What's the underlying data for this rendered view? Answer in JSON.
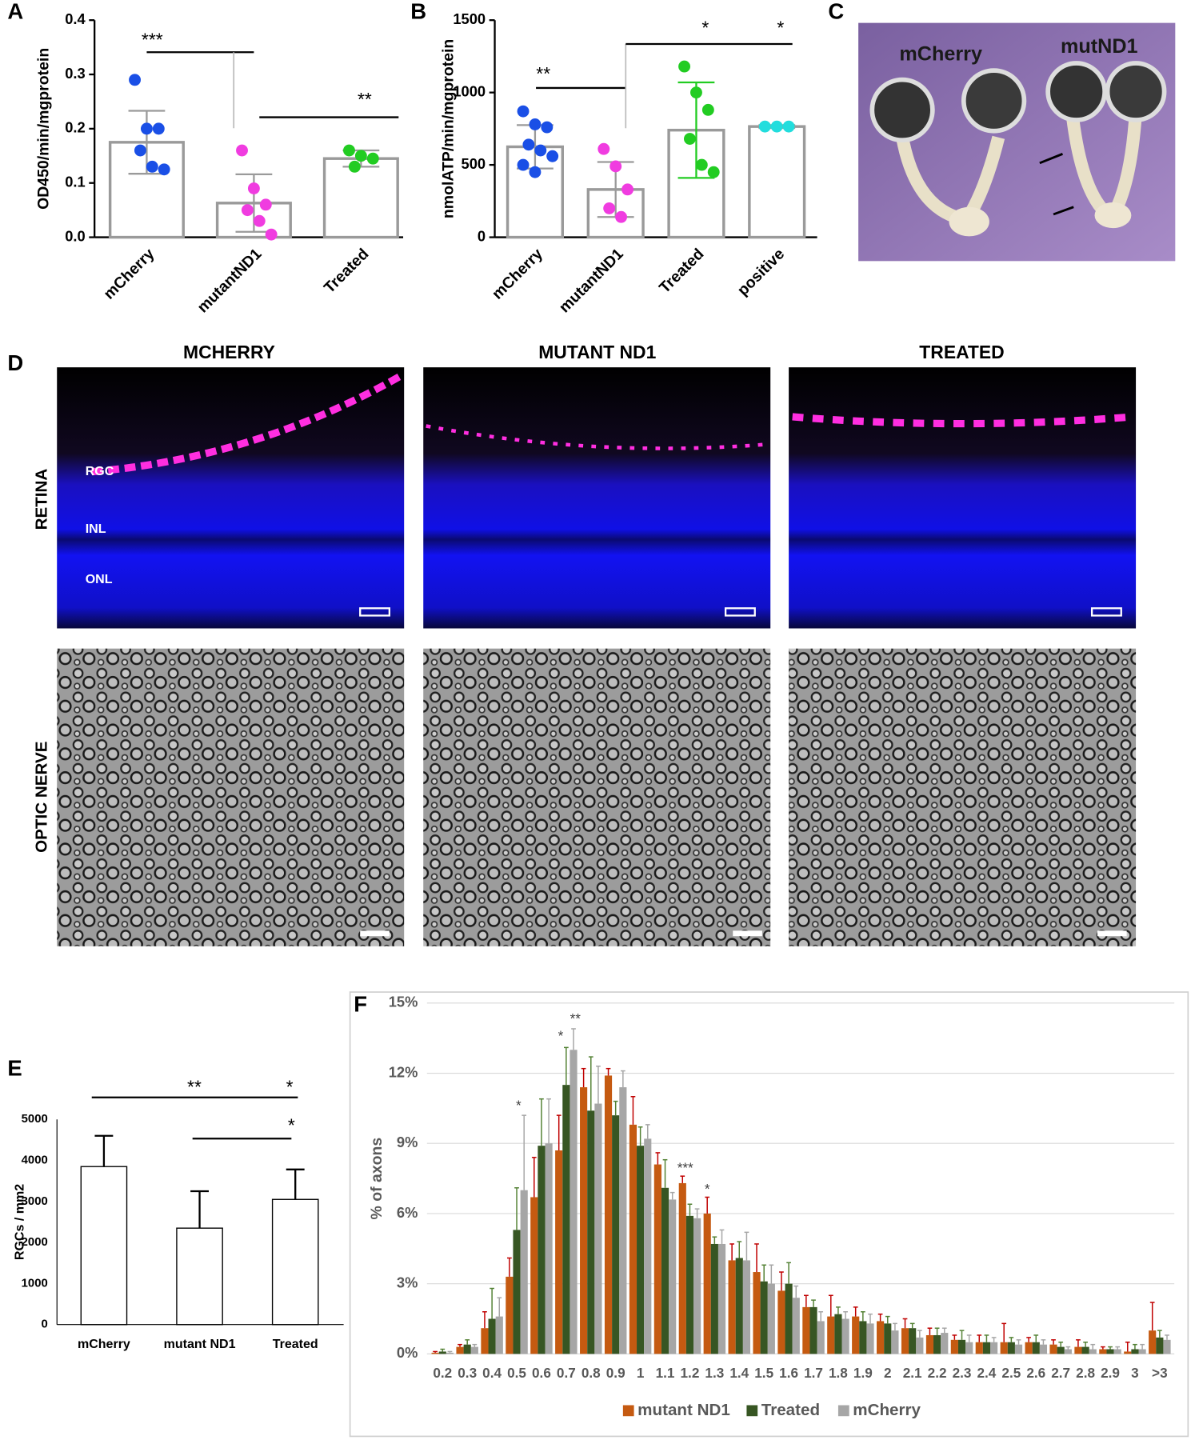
{
  "figure": {
    "panel_labels": [
      "A",
      "B",
      "C",
      "D",
      "E",
      "F"
    ],
    "eye_labels": [
      "mCherry",
      "mutND1"
    ],
    "columns": [
      "MCHERRY",
      "MUTANT ND1",
      "TREATED"
    ],
    "rows": [
      "RETINA",
      "OPTIC NERVE"
    ],
    "layers": [
      "RGC",
      "INL",
      "ONL"
    ]
  },
  "chart_data": [
    {
      "type": "bar",
      "ylabel": "OD450/min/mgprotein",
      "categories": [
        "mCherry",
        "mutantND1",
        "Treated"
      ],
      "values": [
        0.175,
        0.063,
        0.145
      ],
      "errors": [
        0.058,
        0.053,
        0.015
      ],
      "color": "#ffffff",
      "edgecolor": "#9a9a9a",
      "points": [
        [
          0.29,
          0.2,
          0.2,
          0.16,
          0.13,
          0.125
        ],
        [
          0.16,
          0.09,
          0.06,
          0.05,
          0.03,
          0.005
        ],
        [
          0.16,
          0.15,
          0.145,
          0.13
        ]
      ],
      "point_colors": [
        "#1a4fe6",
        "#f03ce0",
        "#22cc22"
      ],
      "error_colors": [
        "#9a9a9a",
        "#9a9a9a",
        "#9a9a9a"
      ],
      "ylim": [
        0,
        0.4
      ],
      "yticks": [
        {
          "value": 0,
          "label": "0.0"
        },
        0.1,
        0.2,
        0.3,
        0.4
      ],
      "annotations": [
        "***",
        "**"
      ]
    },
    {
      "type": "bar",
      "ylabel": "nmolATP/min/mgprotein",
      "categories": [
        "mCherry",
        "mutantND1",
        "Treated",
        "positive"
      ],
      "values": [
        625,
        330,
        740,
        765
      ],
      "errors": [
        150,
        190,
        330,
        10
      ],
      "color": "#ffffff",
      "edgecolor": "#9a9a9a",
      "points": [
        [
          870,
          780,
          760,
          640,
          600,
          560,
          500,
          450
        ],
        [
          610,
          490,
          330,
          200,
          140
        ],
        [
          1180,
          1000,
          880,
          680,
          500,
          450
        ],
        [
          765,
          765,
          765
        ]
      ],
      "point_colors": [
        "#1a4fe6",
        "#f03ce0",
        "#22cc22",
        "#22dddd"
      ],
      "error_colors": [
        "#9a9a9a",
        "#9a9a9a",
        "#22cc22",
        "#9a9a9a"
      ],
      "ylim": [
        0,
        1500
      ],
      "yticks": [
        0,
        500,
        1000,
        1500
      ],
      "annotations": [
        "**",
        "*",
        "*"
      ]
    },
    {
      "type": "bar",
      "ylabel": "RGCs / mm2",
      "categories": [
        "mCherry",
        "mutant ND1",
        "Treated"
      ],
      "values": [
        3850,
        2350,
        3050
      ],
      "errors": [
        750,
        900,
        730
      ],
      "color": "#ffffff",
      "edgecolor": "#000000",
      "ylim": [
        0,
        5000
      ],
      "yticks": [
        0,
        1000,
        2000,
        3000,
        4000,
        5000
      ],
      "annotations": [
        "**",
        "*",
        "*"
      ]
    },
    {
      "type": "bar",
      "ylabel": "% of axons",
      "grid": true,
      "categories": [
        "0.2",
        "0.3",
        "0.4",
        "0.5",
        "0.6",
        "0.7",
        "0.8",
        "0.9",
        "1",
        "1.1",
        "1.2",
        "1.3",
        "1.4",
        "1.5",
        "1.6",
        "1.7",
        "1.8",
        "1.9",
        "2",
        "2.1",
        "2.2",
        "2.3",
        "2.4",
        "2.5",
        "2.6",
        "2.7",
        "2.8",
        "2.9",
        "3",
        ">3"
      ],
      "series": [
        {
          "name": "mutant ND1",
          "color": "#c55a11",
          "error_color": "#c00000",
          "values": [
            0.05,
            0.3,
            1.1,
            3.3,
            6.7,
            8.7,
            11.4,
            11.9,
            9.8,
            8.1,
            7.3,
            6.0,
            4.0,
            3.5,
            2.7,
            2.0,
            1.6,
            1.6,
            1.4,
            1.1,
            0.8,
            0.6,
            0.5,
            0.5,
            0.5,
            0.4,
            0.3,
            0.2,
            0.1,
            1.0
          ],
          "errors": [
            0.05,
            0.1,
            0.7,
            0.8,
            1.7,
            1.5,
            0.8,
            0.3,
            1.2,
            0.5,
            0.3,
            0.7,
            0.7,
            1.2,
            0.8,
            0.5,
            0.9,
            0.4,
            0.3,
            0.4,
            0.3,
            0.2,
            0.3,
            0.8,
            0.2,
            0.2,
            0.3,
            0.1,
            0.4,
            1.2
          ]
        },
        {
          "name": "Treated",
          "color": "#375623",
          "error_color": "#548235",
          "values": [
            0.1,
            0.4,
            1.5,
            5.3,
            8.9,
            11.5,
            10.4,
            10.2,
            8.9,
            7.1,
            5.9,
            4.7,
            4.1,
            3.1,
            3.0,
            2.0,
            1.7,
            1.4,
            1.3,
            1.1,
            0.8,
            0.6,
            0.5,
            0.5,
            0.5,
            0.3,
            0.3,
            0.2,
            0.2,
            0.7
          ],
          "errors": [
            0.1,
            0.2,
            1.3,
            1.8,
            2.0,
            1.6,
            2.3,
            0.6,
            0.8,
            1.2,
            0.5,
            0.3,
            0.7,
            0.7,
            0.9,
            0.3,
            0.3,
            0.4,
            0.3,
            0.2,
            0.3,
            0.4,
            0.3,
            0.2,
            0.3,
            0.2,
            0.2,
            0.1,
            0.2,
            0.3
          ]
        },
        {
          "name": "mCherry",
          "color": "#a6a6a6",
          "error_color": "#a6a6a6",
          "values": [
            0.05,
            0.3,
            1.6,
            7.0,
            9.0,
            13.0,
            10.7,
            11.4,
            9.2,
            6.6,
            5.8,
            4.7,
            4.0,
            3.0,
            2.4,
            1.4,
            1.5,
            1.3,
            1.0,
            0.7,
            0.9,
            0.5,
            0.5,
            0.4,
            0.4,
            0.2,
            0.2,
            0.2,
            0.2,
            0.6
          ],
          "errors": [
            0.05,
            0.1,
            0.8,
            3.2,
            1.9,
            0.9,
            1.6,
            0.7,
            0.6,
            0.3,
            0.4,
            0.6,
            1.2,
            0.8,
            0.5,
            0.4,
            0.3,
            0.4,
            0.3,
            0.3,
            0.2,
            0.3,
            0.2,
            0.2,
            0.2,
            0.1,
            0.2,
            0.1,
            0.2,
            0.2
          ]
        }
      ],
      "ylim": [
        0,
        15
      ],
      "yticks": [
        {
          "value": 0,
          "label": "0%"
        },
        {
          "value": 3,
          "label": "3%"
        },
        {
          "value": 6,
          "label": "6%"
        },
        {
          "value": 9,
          "label": "9%"
        },
        {
          "value": 12,
          "label": "12%"
        },
        {
          "value": 15,
          "label": "15%"
        }
      ],
      "annotations": [
        "*",
        "*",
        "**",
        "***",
        "*"
      ]
    }
  ]
}
